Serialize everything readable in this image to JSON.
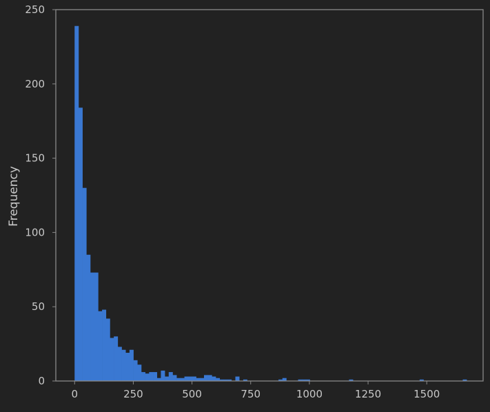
{
  "colors": {
    "background": "#222222",
    "plot_border": "#8a8a8a",
    "bar": "#3a78d2",
    "text": "#c8c8c8"
  },
  "chart_data": {
    "type": "bar",
    "subtype": "histogram",
    "title": "",
    "xlabel": "",
    "ylabel": "Frequency",
    "xlim": [
      -80,
      1740
    ],
    "ylim": [
      0,
      250
    ],
    "grid": false,
    "legend": "none",
    "xticks": [
      0,
      250,
      500,
      750,
      1000,
      1250,
      1500
    ],
    "yticks": [
      0,
      50,
      100,
      150,
      200,
      250
    ],
    "bin_start": 0,
    "bin_width": 16.7,
    "values": [
      239,
      184,
      130,
      85,
      73,
      73,
      47,
      48,
      42,
      29,
      30,
      23,
      21,
      19,
      21,
      14,
      11,
      6,
      5,
      6,
      6,
      2,
      7,
      3,
      6,
      4,
      2,
      2,
      3,
      3,
      3,
      2,
      2,
      4,
      4,
      3,
      2,
      1,
      1,
      1,
      0,
      3,
      0,
      1,
      0,
      0,
      0,
      0,
      0,
      0,
      0,
      0,
      1,
      2,
      0,
      0,
      0,
      1,
      1,
      1,
      0,
      0,
      0,
      0,
      0,
      0,
      0,
      0,
      0,
      0,
      1,
      0,
      0,
      0,
      0,
      0,
      0,
      0,
      0,
      0,
      0,
      0,
      0,
      0,
      0,
      0,
      0,
      0,
      1,
      0,
      0,
      0,
      0,
      0,
      0,
      0,
      0,
      0,
      0,
      1
    ]
  }
}
